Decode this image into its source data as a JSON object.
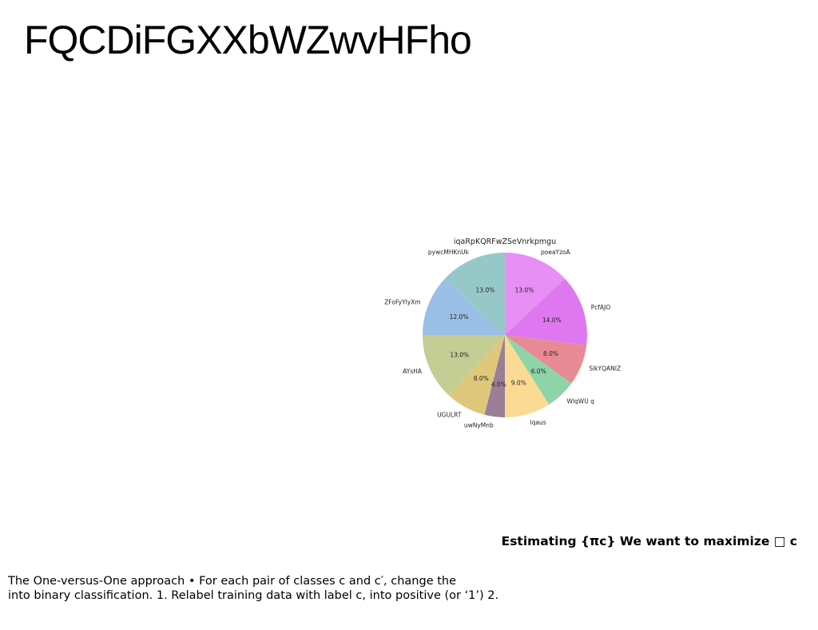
{
  "slide": {
    "title": "FQCDiFGXXbWZwvHFho",
    "heading": "Estimating {πc} We want to maximize □ c",
    "body_lines": [
      "The One-versus-One approach • For each pair of classes c and c′, change the",
      "into binary classification. 1. Relabel training data with label c, into positive (or ‘1’) 2."
    ]
  },
  "chart_data": {
    "type": "pie",
    "title": "iqaRpKQRFwZSeVnrkpmgu",
    "start_angle": 90,
    "direction": "clockwise",
    "slices": [
      {
        "label": "poeaYzoA",
        "value": 13.0,
        "pct_label": "13.0%",
        "color": "#e78ff5"
      },
      {
        "label": "PcfAJO",
        "value": 14.0,
        "pct_label": "14.0%",
        "color": "#df78f0"
      },
      {
        "label": "SlkYQANIZ",
        "value": 8.0,
        "pct_label": "8.0%",
        "color": "#e88a94"
      },
      {
        "label": "WlqWU q",
        "value": 6.0,
        "pct_label": "6.0%",
        "color": "#8fd3a8"
      },
      {
        "label": "lqaus",
        "value": 9.0,
        "pct_label": "9.0%",
        "color": "#fbdb94"
      },
      {
        "label": "uwNyMnb",
        "value": 4.0,
        "pct_label": "4.0%",
        "color": "#9b7f98"
      },
      {
        "label": "UGULRT",
        "value": 8.0,
        "pct_label": "8.0%",
        "color": "#dfc87c"
      },
      {
        "label": "AYsHA",
        "value": 13.0,
        "pct_label": "13.0%",
        "color": "#c4cd94"
      },
      {
        "label": "ZFoFyYlyXm",
        "value": 12.0,
        "pct_label": "12.0%",
        "color": "#9abfe6"
      },
      {
        "label": "pywcMHKnUk",
        "value": 13.0,
        "pct_label": "13.0%",
        "color": "#96c8c8"
      }
    ]
  }
}
